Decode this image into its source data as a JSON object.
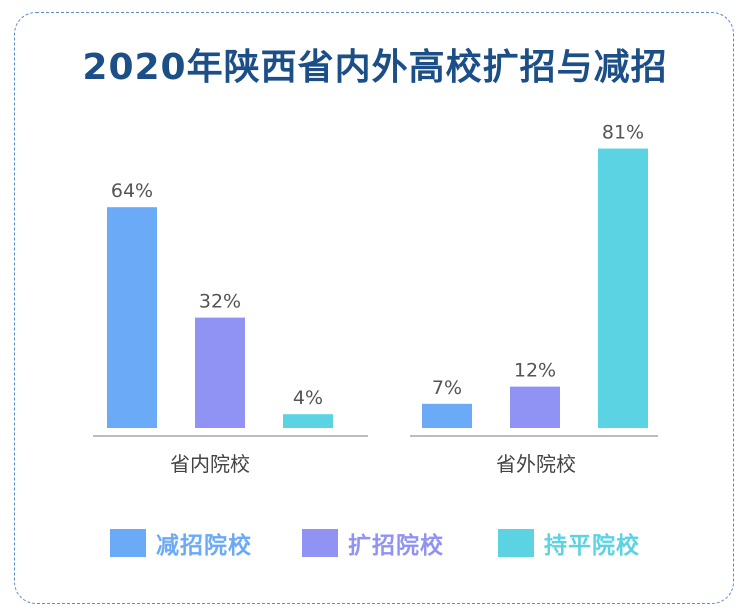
{
  "title": "2020年陕西省内外高校扩招与减招",
  "chart_data": {
    "type": "bar",
    "categories": [
      "省内院校",
      "省外院校"
    ],
    "series": [
      {
        "name": "减招院校",
        "values": [
          64,
          7
        ],
        "labels": [
          "64%",
          "7%"
        ],
        "color": "#6aaaf7"
      },
      {
        "name": "扩招院校",
        "values": [
          32,
          12
        ],
        "labels": [
          "32%",
          "12%"
        ],
        "color": "#9093f3"
      },
      {
        "name": "持平院校",
        "values": [
          4,
          81
        ],
        "labels": [
          "4%",
          "81%"
        ],
        "color": "#5cd3e2"
      }
    ],
    "ylim": [
      0,
      100
    ],
    "grid": false,
    "legend_position": "bottom",
    "value_label_color": "#555555",
    "category_label_color": "#444444"
  }
}
